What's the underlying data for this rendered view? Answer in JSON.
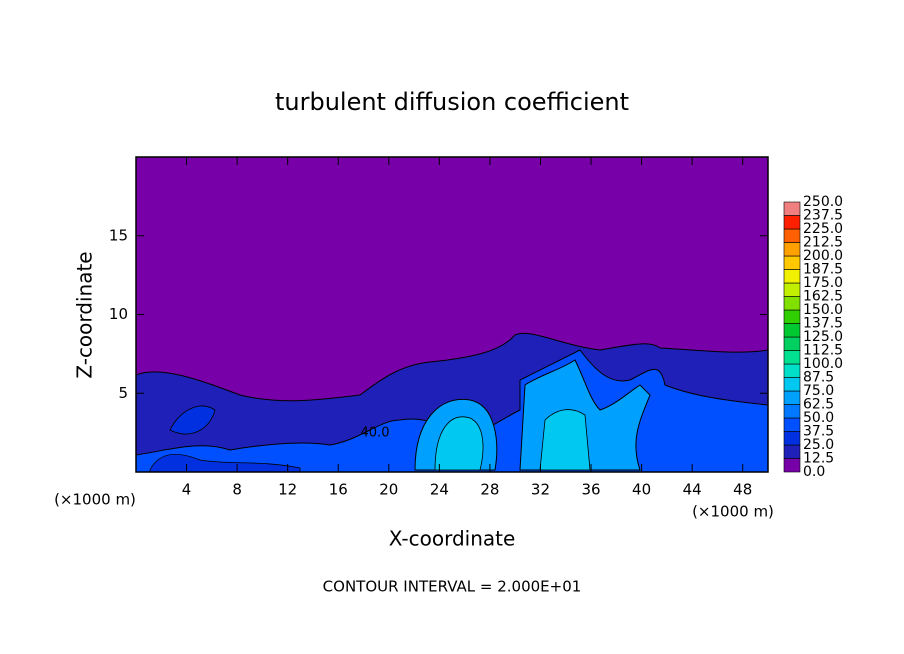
{
  "chart_data": {
    "type": "contour",
    "title": "turbulent diffusion coefficient",
    "xlabel": "X-coordinate",
    "ylabel": "Z-coordinate",
    "x_unit": "(×1000 m)",
    "annotation": "CONTOUR INTERVAL = 2.000E+01",
    "contour_labels": [
      "40.0"
    ],
    "xlim": [
      0,
      50
    ],
    "xticks": [
      4,
      8,
      12,
      16,
      20,
      24,
      28,
      32,
      36,
      40,
      44,
      48
    ],
    "ylim": [
      0,
      20
    ],
    "yticks": [
      5,
      10,
      15
    ],
    "levels": [
      {
        "value": 0,
        "label": "0.0"
      },
      {
        "value": 12.5,
        "label": "12.5"
      },
      {
        "value": 25,
        "label": "25.0"
      },
      {
        "value": 37.5,
        "label": "37.5"
      },
      {
        "value": 50,
        "label": "50.0"
      },
      {
        "value": 62.5,
        "label": "62.5"
      },
      {
        "value": 75,
        "label": "75.0"
      },
      {
        "value": 87.5,
        "label": "87.5"
      },
      {
        "value": 100,
        "label": "100.0"
      },
      {
        "value": 112.5,
        "label": "112.5"
      },
      {
        "value": 125,
        "label": "125.0"
      },
      {
        "value": 137.5,
        "label": "137.5"
      },
      {
        "value": 150,
        "label": "150.0"
      },
      {
        "value": 162.5,
        "label": "162.5"
      },
      {
        "value": 175,
        "label": "175.0"
      },
      {
        "value": 187.5,
        "label": "187.5"
      },
      {
        "value": 200,
        "label": "200.0"
      },
      {
        "value": 212.5,
        "label": "212.5"
      },
      {
        "value": 225,
        "label": "225.0"
      },
      {
        "value": 237.5,
        "label": "237.5"
      },
      {
        "value": 250,
        "label": "250.0"
      }
    ],
    "colors": [
      "#7800a8",
      "#1e20b8",
      "#0030e0",
      "#0050ff",
      "#0078ff",
      "#00a0ff",
      "#00c8f0",
      "#00e0c8",
      "#00e090",
      "#00d060",
      "#00c830",
      "#30d000",
      "#80e000",
      "#c0f000",
      "#f0f000",
      "#ffc800",
      "#ffa000",
      "#ff6000",
      "#ff2000",
      "#f08080"
    ]
  }
}
